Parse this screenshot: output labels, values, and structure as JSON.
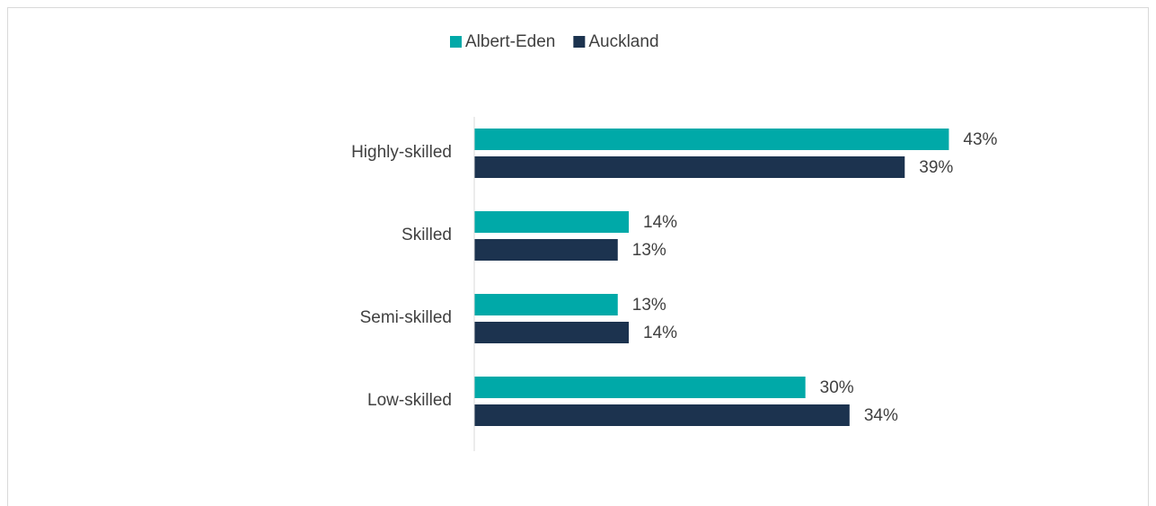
{
  "chart_data": {
    "type": "barh",
    "categories": [
      "Highly-skilled",
      "Skilled",
      "Semi-skilled",
      "Low-skilled"
    ],
    "series": [
      {
        "name": "Albert-Eden",
        "color": "#00a9a8",
        "values": [
          43,
          14,
          13,
          30
        ],
        "value_labels": [
          "43%",
          "14%",
          "13%",
          "30%"
        ]
      },
      {
        "name": "Auckland",
        "color": "#1c334f",
        "values": [
          39,
          13,
          14,
          34
        ],
        "value_labels": [
          "39%",
          "13%",
          "14%",
          "34%"
        ]
      }
    ],
    "xlim": [
      0,
      45
    ],
    "legend": "top"
  }
}
